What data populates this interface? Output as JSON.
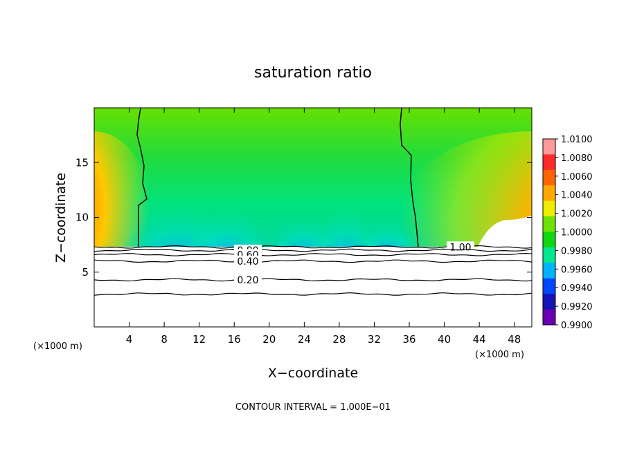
{
  "chart_data": {
    "type": "heatmap",
    "title": "saturation ratio",
    "xlabel": "X−coordinate",
    "ylabel": "Z−coordinate",
    "x_unit_label": "(×1000 m)",
    "y_unit_label": "(×1000 m)",
    "xlim": [
      0,
      50
    ],
    "ylim": [
      0,
      20
    ],
    "x_ticks": [
      4,
      8,
      12,
      16,
      20,
      24,
      28,
      32,
      36,
      40,
      44,
      48
    ],
    "y_ticks": [
      5,
      10,
      15
    ],
    "footnote": "CONTOUR INTERVAL = 1.000E−01",
    "colorbar": {
      "levels": [
        "1.0100",
        "1.0080",
        "1.0060",
        "1.0040",
        "1.0020",
        "1.0000",
        "0.9980",
        "0.9960",
        "0.9940",
        "0.9920",
        "0.9900"
      ],
      "colors": [
        "#ff9a9a",
        "#ff2a2a",
        "#ff6400",
        "#ffa800",
        "#f0ec00",
        "#6ce400",
        "#10d810",
        "#00e890",
        "#00b4ff",
        "#0048ff",
        "#1414b4",
        "#6a00b0"
      ]
    },
    "contour_lines": [
      {
        "label": "1.00",
        "z": 7.3
      },
      {
        "label": "0.80",
        "z": 7.0
      },
      {
        "label": "0.60",
        "z": 6.6
      },
      {
        "label": "0.40",
        "z": 6.0
      },
      {
        "label": "0.20",
        "z": 4.3
      },
      {
        "label": "",
        "z": 3.0
      }
    ],
    "shaded_region_z_min": 7.3
  }
}
